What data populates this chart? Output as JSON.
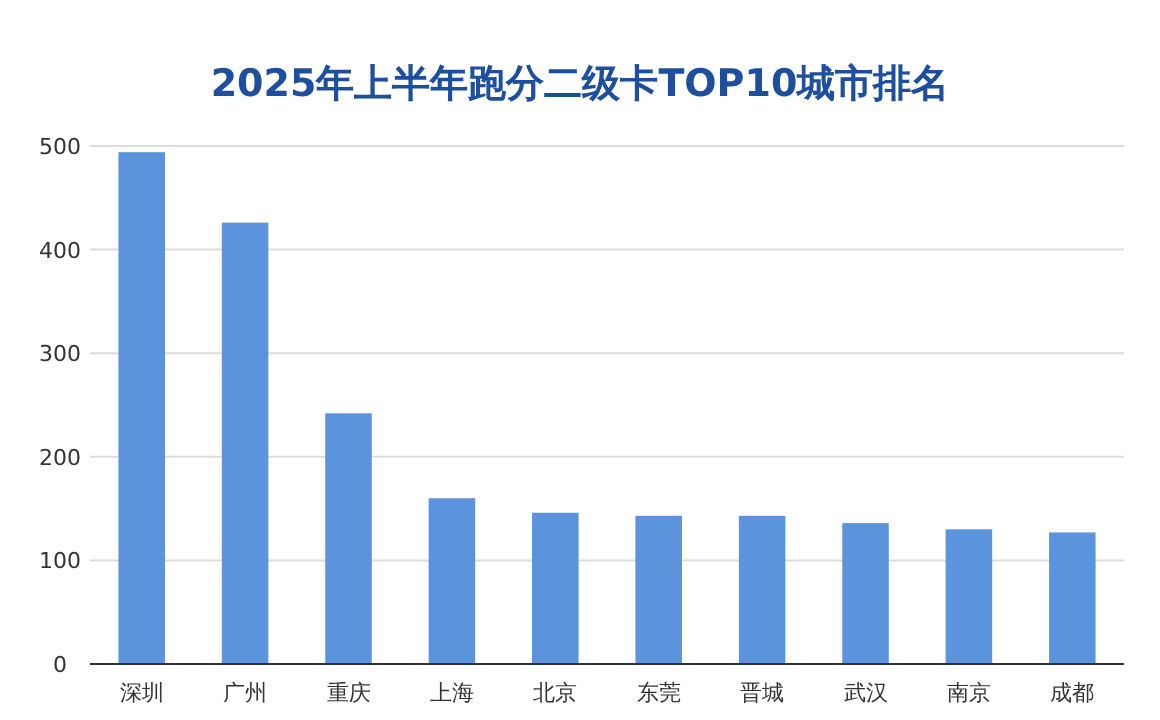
{
  "chart_data": {
    "type": "bar",
    "title": "2025年上半年跑分二级卡TOP10城市排名",
    "categories": [
      "深圳",
      "广州",
      "重庆",
      "上海",
      "北京",
      "东莞",
      "晋城",
      "武汉",
      "南京",
      "成都"
    ],
    "values": [
      494,
      426,
      242,
      160,
      146,
      143,
      143,
      136,
      130,
      127
    ],
    "color": "#5b93dc",
    "ylim": [
      0,
      500
    ],
    "yticks": [
      0,
      100,
      200,
      300,
      400,
      500
    ],
    "grid": "y"
  }
}
